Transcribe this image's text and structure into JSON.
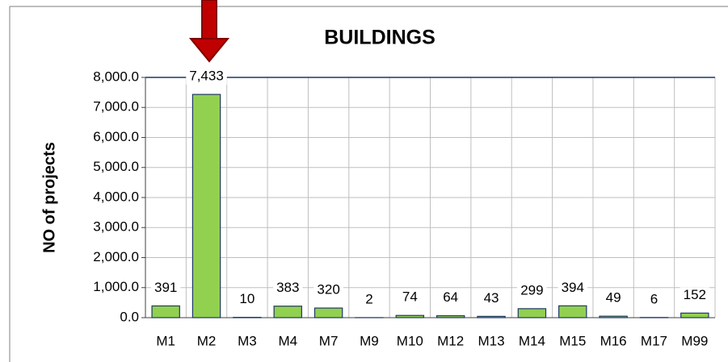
{
  "chart_data": {
    "type": "bar",
    "title": "BUILDINGS",
    "y_label": "NO of projects",
    "categories": [
      "M1",
      "M2",
      "M3",
      "M4",
      "M7",
      "M9",
      "M10",
      "M12",
      "M13",
      "M14",
      "M15",
      "M16",
      "M17",
      "M99"
    ],
    "values": [
      391,
      7433,
      10,
      383,
      320,
      2,
      74,
      64,
      43,
      299,
      394,
      49,
      6,
      152
    ],
    "value_labels": [
      "391",
      "7,433",
      "10",
      "383",
      "320",
      "2",
      "74",
      "64",
      "43",
      "299",
      "394",
      "49",
      "6",
      "152"
    ],
    "color": "#92d050",
    "ylim": [
      0,
      8000
    ],
    "yticks": [
      {
        "value": 0,
        "label": "0.0"
      },
      {
        "value": 1000,
        "label": "1,000.0"
      },
      {
        "value": 2000,
        "label": "2,000.0"
      },
      {
        "value": 3000,
        "label": "3,000.0"
      },
      {
        "value": 4000,
        "label": "4,000.0"
      },
      {
        "value": 5000,
        "label": "5,000.0"
      },
      {
        "value": 6000,
        "label": "6,000.0"
      },
      {
        "value": 7000,
        "label": "7,000.0"
      },
      {
        "value": 8000,
        "label": "8,000.0"
      }
    ],
    "grid": true
  }
}
